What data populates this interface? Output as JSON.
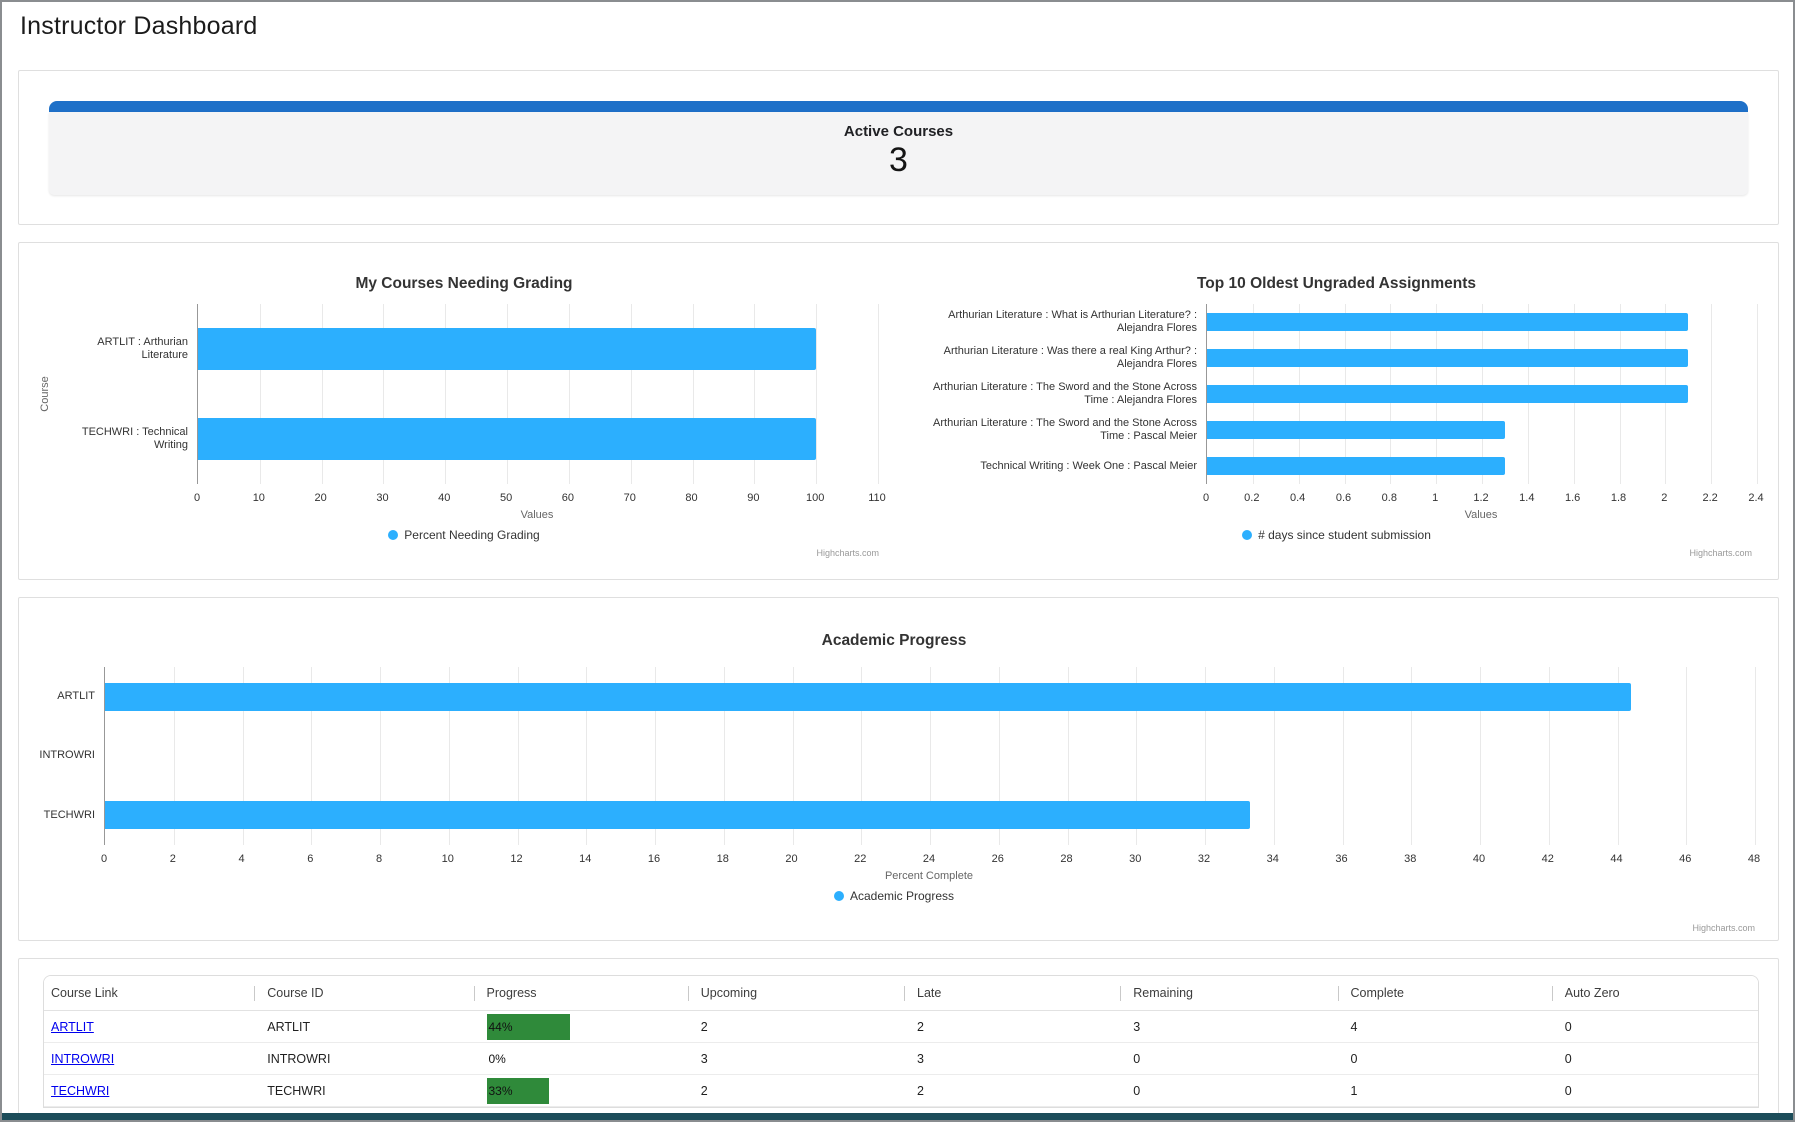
{
  "page": {
    "title": "Instructor Dashboard"
  },
  "active_courses": {
    "label": "Active Courses",
    "value": "3"
  },
  "chart_data": [
    {
      "type": "bar",
      "title": "My Courses Needing Grading",
      "categories": [
        "ARTLIT : Arthurian Literature",
        "TECHWRI : Technical Writing"
      ],
      "values": [
        100,
        100
      ],
      "series_name": "Percent Needing Grading",
      "xlabel": "Values",
      "ylabel": "Course",
      "xlim": [
        0,
        110
      ],
      "tick_step": 10,
      "grid": true,
      "legend_position": "bottom-center",
      "bar_color": "#2CAFFE",
      "credit": "Highcharts.com"
    },
    {
      "type": "bar",
      "title": "Top 10 Oldest Ungraded Assignments",
      "categories": [
        "Arthurian Literature : What is Arthurian Literature? : Alejandra Flores",
        "Arthurian Literature : Was there a real King Arthur? : Alejandra Flores",
        "Arthurian Literature : The Sword and the Stone Across Time : Alejandra Flores",
        "Arthurian Literature : The Sword and the Stone Across Time : Pascal Meier",
        "Technical Writing : Week One : Pascal Meier"
      ],
      "values": [
        2.1,
        2.1,
        2.1,
        1.3,
        1.3
      ],
      "series_name": "# days since student submission",
      "xlabel": "Values",
      "ylabel": "",
      "xlim": [
        0,
        2.4
      ],
      "tick_step": 0.2,
      "grid": true,
      "legend_position": "bottom-center",
      "bar_color": "#2CAFFE",
      "credit": "Highcharts.com"
    },
    {
      "type": "bar",
      "title": "Academic Progress",
      "categories": [
        "ARTLIT",
        "INTROWRI",
        "TECHWRI"
      ],
      "values": [
        44.4,
        0,
        33.3
      ],
      "series_name": "Academic Progress",
      "xlabel": "Percent Complete",
      "ylabel": "",
      "xlim": [
        0,
        48
      ],
      "tick_step": 2,
      "grid": true,
      "legend_position": "bottom-center",
      "bar_color": "#2CAFFE",
      "credit": "Highcharts.com"
    }
  ],
  "table": {
    "headers": [
      "Course Link",
      "Course ID",
      "Progress",
      "Upcoming",
      "Late",
      "Remaining",
      "Complete",
      "Auto Zero"
    ],
    "rows": [
      {
        "course_link": "ARTLIT",
        "course_id": "ARTLIT",
        "progress_pct": 44,
        "progress_label": "44%",
        "upcoming": "2",
        "late": "2",
        "remaining": "3",
        "complete": "4",
        "auto_zero": "0"
      },
      {
        "course_link": "INTROWRI",
        "course_id": "INTROWRI",
        "progress_pct": 0,
        "progress_label": "0%",
        "upcoming": "3",
        "late": "3",
        "remaining": "0",
        "complete": "0",
        "auto_zero": "0"
      },
      {
        "course_link": "TECHWRI",
        "course_id": "TECHWRI",
        "progress_pct": 33,
        "progress_label": "33%",
        "upcoming": "2",
        "late": "2",
        "remaining": "0",
        "complete": "1",
        "auto_zero": "0"
      }
    ],
    "progress_color": "#2F8A3A",
    "link_color": "#0000EE"
  },
  "colors": {
    "bar_blue": "#2CAFFE",
    "card_accent_blue": "#1E70C8",
    "footer_teal": "#1D4D5A"
  }
}
